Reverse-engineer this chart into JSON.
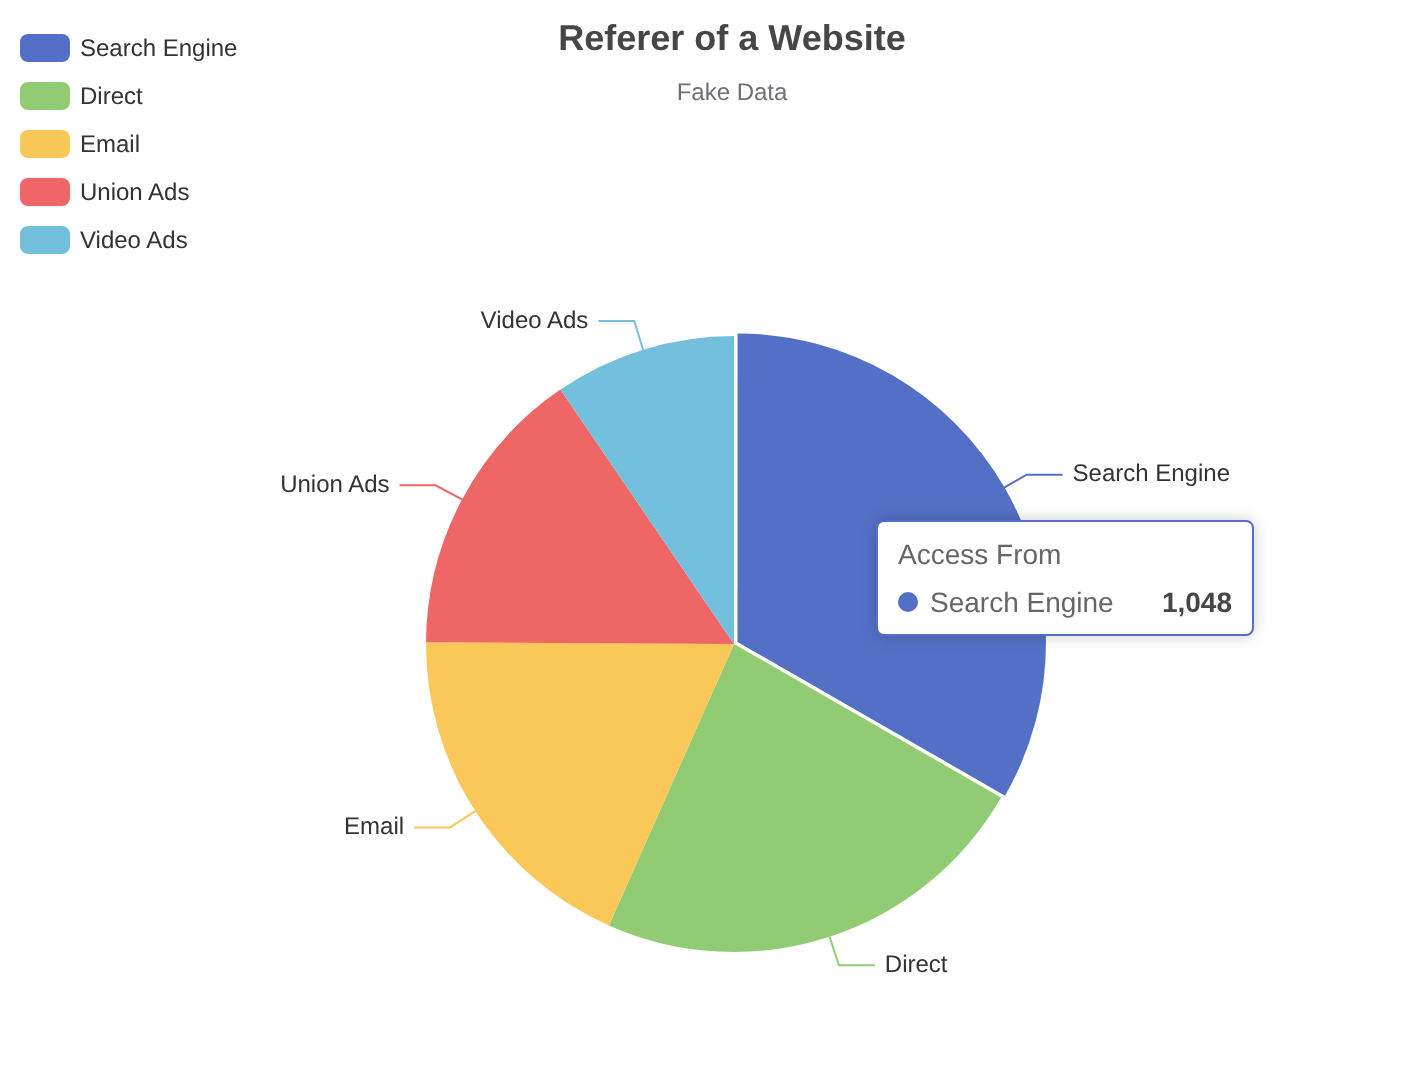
{
  "chart_data": {
    "type": "pie",
    "title": "Referer of a Website",
    "subtitle": "Fake Data",
    "categories": [
      "Search Engine",
      "Direct",
      "Email",
      "Union Ads",
      "Video Ads"
    ],
    "values": [
      1048,
      735,
      580,
      484,
      300
    ],
    "colors": [
      "#5470c6",
      "#91cc75",
      "#fac858",
      "#ee6666",
      "#73c0de"
    ],
    "value_labels": [
      "1,048",
      null,
      null,
      null,
      null
    ],
    "annotations": [
      "Access From"
    ],
    "legend": "top left"
  }
}
